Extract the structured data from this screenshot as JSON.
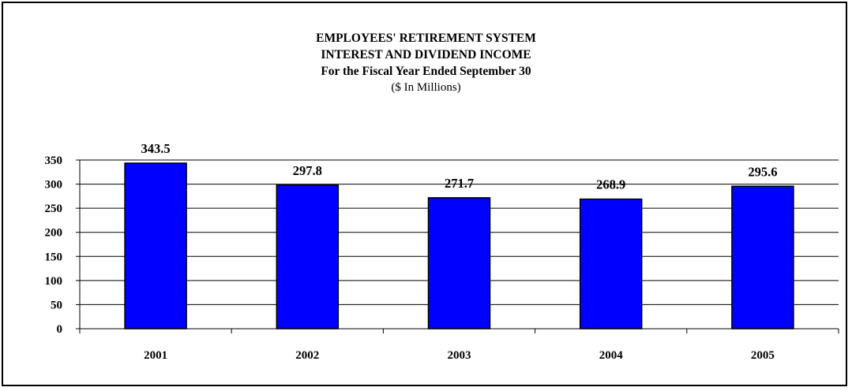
{
  "chart_data": {
    "type": "bar",
    "title_lines": [
      "EMPLOYEES' RETIREMENT SYSTEM",
      "INTEREST AND DIVIDEND INCOME",
      "For the Fiscal Year Ended September 30"
    ],
    "subtitle": "($ In Millions)",
    "categories": [
      "2001",
      "2002",
      "2003",
      "2004",
      "2005"
    ],
    "values": [
      343.5,
      297.8,
      271.7,
      268.9,
      295.6
    ],
    "data_labels": [
      "343.5",
      "297.8",
      "271.7",
      "268.9",
      "295.6"
    ],
    "ylim": [
      0,
      350
    ],
    "yticks": [
      "0",
      "50",
      "100",
      "150",
      "200",
      "250",
      "300",
      "350"
    ],
    "grid": true,
    "bar_color": "#0000FF",
    "legend": "none"
  }
}
